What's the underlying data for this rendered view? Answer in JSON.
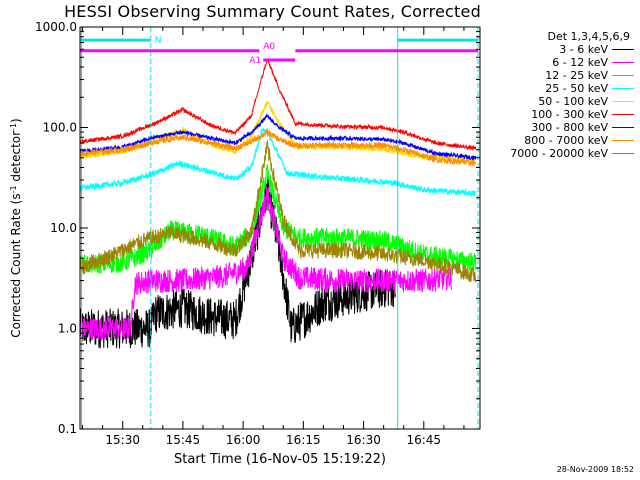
{
  "title": "HESSI Observing Summary Count Rates, Corrected",
  "timestamp": "28-Nov-2009 18:52",
  "chart_data": {
    "type": "line",
    "title": "HESSI Observing Summary Count Rates, Corrected",
    "xlabel": "Start Time (16-Nov-05 15:19:22)",
    "ylabel_parts": [
      "Corrected Count Rate (s",
      "-1",
      " detector",
      "-1",
      ")"
    ],
    "y_scale": "log",
    "ylim": [
      0.1,
      1000
    ],
    "y_ticks": [
      {
        "value": 0.1,
        "label": "0.1"
      },
      {
        "value": 1,
        "label": "1.0"
      },
      {
        "value": 10,
        "label": "10.0"
      },
      {
        "value": 100,
        "label": "100.0"
      },
      {
        "value": 1000,
        "label": "1000.0"
      }
    ],
    "xlim": [
      "15:19:22",
      "16:59:00"
    ],
    "x_ticks": [
      "15:30",
      "15:45",
      "16:00",
      "16:15",
      "16:30",
      "16:45"
    ],
    "grid": false,
    "legend_title": "Det 1,3,4,5,6,9",
    "legend_position": "right",
    "series": [
      {
        "name": "3 - 6 keV",
        "color": "#000000",
        "noise": 0.2,
        "points": [
          [
            "15:19:22",
            1.0
          ],
          [
            "15:37",
            1.0
          ],
          [
            "15:38",
            1.4
          ],
          [
            "15:45",
            1.6
          ],
          [
            "15:52",
            1.3
          ],
          [
            "15:58",
            1.2
          ],
          [
            "16:02",
            5
          ],
          [
            "16:06",
            24
          ],
          [
            "16:09",
            6
          ],
          [
            "16:12",
            1.0
          ],
          [
            "16:20",
            1.8
          ],
          [
            "16:30",
            2.3
          ],
          [
            "16:38",
            2.6
          ]
        ]
      },
      {
        "name": "6 - 12 keV",
        "color": "#ff00ff",
        "noise": 0.12,
        "points": [
          [
            "15:19:22",
            1.0
          ],
          [
            "15:32",
            1.0
          ],
          [
            "15:33",
            2.8
          ],
          [
            "15:37",
            3.0
          ],
          [
            "15:45",
            3.0
          ],
          [
            "15:55",
            3.3
          ],
          [
            "16:01",
            4
          ],
          [
            "16:06",
            22
          ],
          [
            "16:10",
            5
          ],
          [
            "16:14",
            3.2
          ],
          [
            "16:25",
            3.0
          ],
          [
            "16:38",
            3.0
          ],
          [
            "16:45",
            3.0
          ],
          [
            "16:52",
            3.2
          ]
        ]
      },
      {
        "name": "12 - 25 keV",
        "color": "#00ff00",
        "noise": 0.1,
        "points": [
          [
            "15:19:22",
            4.3
          ],
          [
            "15:30",
            4.5
          ],
          [
            "15:37",
            6
          ],
          [
            "15:42",
            9.5
          ],
          [
            "15:50",
            8.5
          ],
          [
            "15:58",
            6.5
          ],
          [
            "16:02",
            9
          ],
          [
            "16:06",
            35
          ],
          [
            "16:10",
            10
          ],
          [
            "16:14",
            8
          ],
          [
            "16:25",
            8
          ],
          [
            "16:35",
            7.5
          ],
          [
            "16:45",
            5.5
          ],
          [
            "16:58",
            4.5
          ]
        ]
      },
      {
        "name": "25 - 50 keV",
        "color": "#00ffff",
        "noise": 0.03,
        "points": [
          [
            "15:19:22",
            25
          ],
          [
            "15:30",
            28
          ],
          [
            "15:38",
            35
          ],
          [
            "15:44",
            44
          ],
          [
            "15:52",
            36
          ],
          [
            "15:58",
            31
          ],
          [
            "16:02",
            40
          ],
          [
            "16:05",
            100
          ],
          [
            "16:07",
            75
          ],
          [
            "16:11",
            35
          ],
          [
            "16:20",
            32
          ],
          [
            "16:30",
            30
          ],
          [
            "16:38",
            28
          ],
          [
            "16:45",
            24
          ],
          [
            "16:58",
            22
          ]
        ]
      },
      {
        "name": "50 - 100 keV",
        "color": "#ffd700",
        "noise": 0.03,
        "points": [
          [
            "15:19:22",
            52
          ],
          [
            "15:30",
            58
          ],
          [
            "15:38",
            72
          ],
          [
            "15:45",
            95
          ],
          [
            "15:52",
            68
          ],
          [
            "15:58",
            58
          ],
          [
            "16:02",
            80
          ],
          [
            "16:06",
            180
          ],
          [
            "16:09",
            110
          ],
          [
            "16:13",
            65
          ],
          [
            "16:25",
            64
          ],
          [
            "16:35",
            62
          ],
          [
            "16:40",
            55
          ],
          [
            "16:48",
            50
          ],
          [
            "16:58",
            46
          ]
        ]
      },
      {
        "name": "100 - 300 keV",
        "color": "#ff0000",
        "noise": 0.02,
        "points": [
          [
            "15:19:22",
            72
          ],
          [
            "15:30",
            82
          ],
          [
            "15:38",
            110
          ],
          [
            "15:45",
            150
          ],
          [
            "15:52",
            105
          ],
          [
            "15:58",
            88
          ],
          [
            "16:02",
            130
          ],
          [
            "16:06",
            480
          ],
          [
            "16:09",
            240
          ],
          [
            "16:13",
            110
          ],
          [
            "16:25",
            102
          ],
          [
            "16:35",
            100
          ],
          [
            "16:40",
            90
          ],
          [
            "16:48",
            70
          ],
          [
            "16:58",
            62
          ]
        ]
      },
      {
        "name": "300 - 800 keV",
        "color": "#0000ff",
        "noise": 0.02,
        "points": [
          [
            "15:19:22",
            58
          ],
          [
            "15:30",
            64
          ],
          [
            "15:38",
            80
          ],
          [
            "15:45",
            90
          ],
          [
            "15:52",
            78
          ],
          [
            "15:58",
            70
          ],
          [
            "16:02",
            88
          ],
          [
            "16:06",
            130
          ],
          [
            "16:09",
            100
          ],
          [
            "16:13",
            78
          ],
          [
            "16:25",
            78
          ],
          [
            "16:35",
            76
          ],
          [
            "16:40",
            70
          ],
          [
            "16:48",
            55
          ],
          [
            "16:58",
            50
          ]
        ]
      },
      {
        "name": "800 - 7000 keV",
        "color": "#ff8c00",
        "noise": 0.03,
        "points": [
          [
            "15:19:22",
            55
          ],
          [
            "15:30",
            60
          ],
          [
            "15:38",
            72
          ],
          [
            "15:45",
            80
          ],
          [
            "15:52",
            70
          ],
          [
            "15:58",
            62
          ],
          [
            "16:02",
            72
          ],
          [
            "16:06",
            90
          ],
          [
            "16:09",
            76
          ],
          [
            "16:13",
            66
          ],
          [
            "16:25",
            67
          ],
          [
            "16:35",
            66
          ],
          [
            "16:40",
            60
          ],
          [
            "16:48",
            48
          ],
          [
            "16:58",
            44
          ]
        ]
      },
      {
        "name": "7000 - 20000 keV",
        "color": "#9a8400",
        "noise": 0.08,
        "points": [
          [
            "15:19:22",
            4
          ],
          [
            "15:28",
            5.5
          ],
          [
            "15:35",
            7.5
          ],
          [
            "15:42",
            9
          ],
          [
            "15:50",
            7.5
          ],
          [
            "15:58",
            6
          ],
          [
            "16:02",
            9
          ],
          [
            "16:06",
            65
          ],
          [
            "16:10",
            12
          ],
          [
            "16:14",
            6
          ],
          [
            "16:25",
            6
          ],
          [
            "16:35",
            5.5
          ],
          [
            "16:45",
            4.8
          ],
          [
            "16:52",
            4
          ],
          [
            "16:58",
            3.3
          ]
        ]
      }
    ],
    "vlines": [
      {
        "time": "15:19:45",
        "style": "solid"
      },
      {
        "time": "15:37:00",
        "style": "dashed"
      },
      {
        "time": "16:38:30",
        "style": "solid"
      },
      {
        "time": "16:58:30",
        "style": "dashed"
      }
    ],
    "bars": [
      {
        "label": "N",
        "color": "#00e5e5",
        "segments": [
          [
            "15:19:22",
            "15:37:00"
          ],
          [
            "16:38:30",
            "16:58:30"
          ]
        ],
        "value": 740
      },
      {
        "label": "A0",
        "color": "#ff00ff",
        "segments": [
          [
            "15:19:22",
            "16:04:00"
          ],
          [
            "16:13:00",
            "16:58:30"
          ]
        ],
        "value": 580
      },
      {
        "label": "A1",
        "color": "#ff00ff",
        "segments": [
          [
            "16:05:00",
            "16:13:00"
          ]
        ],
        "value": 470
      }
    ]
  }
}
